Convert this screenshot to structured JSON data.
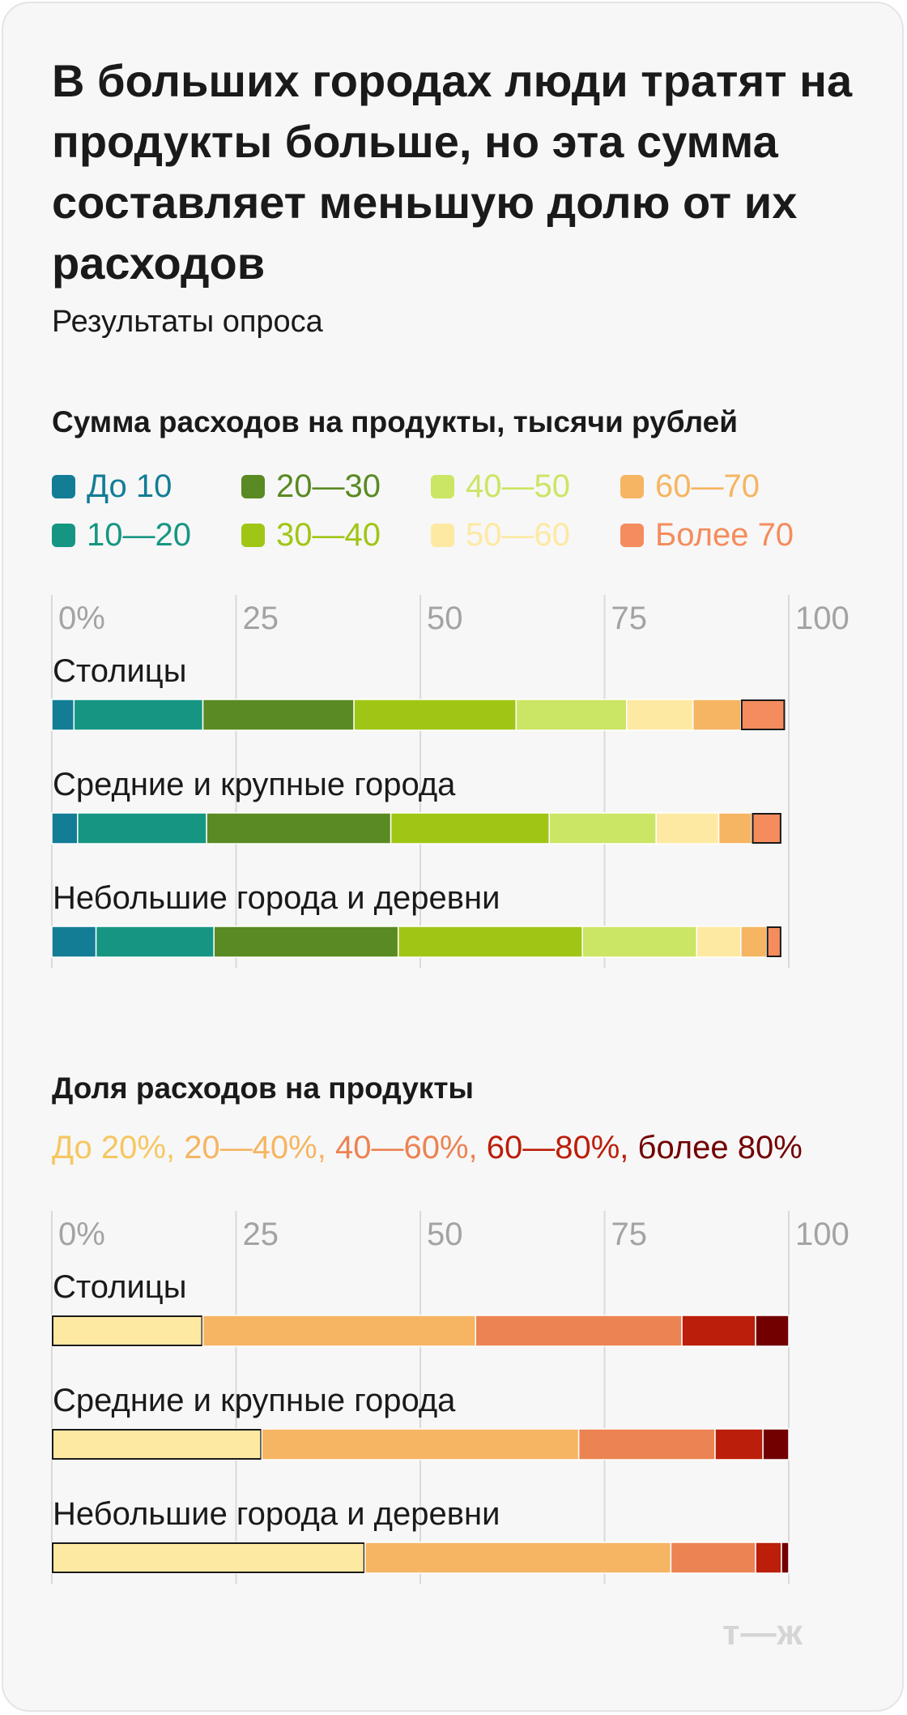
{
  "title": "В больших городах люди тратят на продукты больше, но эта сумма составляет меньшую долю от их расходов",
  "subtitle": "Результаты опроса",
  "logo": "т—ж",
  "chart_data": [
    {
      "type": "bar",
      "orientation": "horizontal",
      "stacked": true,
      "title": "Сумма расходов на продукты, тысячи рублей",
      "xlim": [
        0,
        100
      ],
      "ticks": [
        "0%",
        "25",
        "50",
        "75",
        "100"
      ],
      "grid": true,
      "legend_position": "top",
      "categories": [
        "Столицы",
        "Средние и крупные города",
        "Небольшие города и деревни"
      ],
      "series": [
        {
          "name": "До 10",
          "color": "#137d96",
          "values": [
            3,
            3.5,
            6
          ]
        },
        {
          "name": "10—20",
          "color": "#169682",
          "values": [
            17.5,
            17.5,
            16
          ]
        },
        {
          "name": "20—30",
          "color": "#5a8a23",
          "values": [
            20.5,
            25,
            25
          ]
        },
        {
          "name": "30—40",
          "color": "#a0c615",
          "values": [
            22,
            21.5,
            25
          ]
        },
        {
          "name": "40—50",
          "color": "#cbe564",
          "values": [
            15,
            14.5,
            15.5
          ]
        },
        {
          "name": "50—60",
          "color": "#fde9a2",
          "values": [
            9,
            8.5,
            6
          ]
        },
        {
          "name": "60—70",
          "color": "#f6b562",
          "values": [
            6.5,
            4.5,
            3.5
          ]
        },
        {
          "name": "Более 70",
          "color": "#f48c5d",
          "values": [
            6,
            4,
            2
          ]
        }
      ]
    },
    {
      "type": "bar",
      "orientation": "horizontal",
      "stacked": true,
      "title": "Доля расходов на продукты",
      "xlim": [
        0,
        100
      ],
      "ticks": [
        "0%",
        "25",
        "50",
        "75",
        "100"
      ],
      "grid": true,
      "categories": [
        "Столицы",
        "Средние и крупные города",
        "Небольшие города и деревни"
      ],
      "series": [
        {
          "name": "До 20%",
          "color": "#fde9a2",
          "values": [
            20.5,
            28.5,
            42.5
          ]
        },
        {
          "name": "20—40%",
          "color": "#f6b562",
          "values": [
            37,
            43,
            41.5
          ]
        },
        {
          "name": "40—60%",
          "color": "#ec8352",
          "values": [
            28,
            18.5,
            11.5
          ]
        },
        {
          "name": "60—80%",
          "color": "#bb1e0a",
          "values": [
            10,
            6.5,
            3.5
          ]
        },
        {
          "name": "более 80%",
          "color": "#720000",
          "values": [
            4.5,
            3.5,
            1
          ]
        }
      ]
    }
  ]
}
